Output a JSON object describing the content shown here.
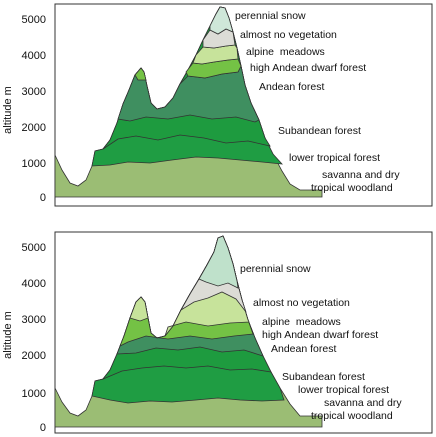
{
  "panels": [
    {
      "id": "top",
      "ylabel": "altitude m",
      "yticks": [
        0,
        1000,
        2000,
        3000,
        4000,
        5000
      ],
      "zones": [
        {
          "key": "snow",
          "label": "perennial snow",
          "color": "#cfe7d9"
        },
        {
          "key": "novg",
          "label": "almost no vegetation",
          "color": "#dcdcd6"
        },
        {
          "key": "alp",
          "label": "alpine  meadows",
          "color": "#c7e39b"
        },
        {
          "key": "dwarf",
          "label": "high Andean dwarf forest",
          "color": "#74c245"
        },
        {
          "key": "andean",
          "label": "Andean forest",
          "color": "#3f8f60"
        },
        {
          "key": "subandean",
          "label": "Subandean forest",
          "color": "#1e9b3f"
        },
        {
          "key": "lower",
          "label": "lower tropical forest",
          "color": "#1f9d43"
        },
        {
          "key": "savanna",
          "label": "savanna and dry tropical woodland",
          "label_lines": [
            "savanna and dry",
            "tropical woodland"
          ],
          "color": "#9bbd74"
        }
      ]
    },
    {
      "id": "bottom",
      "ylabel": "altitude m",
      "yticks": [
        0,
        1000,
        2000,
        3000,
        4000,
        5000
      ],
      "zones": [
        {
          "key": "snow",
          "label": "perennial snow",
          "color": "#bfe1cb"
        },
        {
          "key": "novg",
          "label": "almost no vegetation",
          "color": "#dcdcd6"
        },
        {
          "key": "alp",
          "label": "alpine  meadows",
          "color": "#c7e39b"
        },
        {
          "key": "dwarf",
          "label": "high Andean dwarf forest",
          "color": "#74c245"
        },
        {
          "key": "andean",
          "label": "Andean forest",
          "color": "#3f8f60"
        },
        {
          "key": "subandean",
          "label": "Subandean forest",
          "color": "#1e9b3f"
        },
        {
          "key": "lower",
          "label": "lower tropical forest",
          "color": "#1f9d43"
        },
        {
          "key": "savanna",
          "label": "savanna and dry tropical woodland",
          "label_lines": [
            "savanna and dry",
            "tropical woodland"
          ],
          "color": "#9bbd74"
        }
      ]
    }
  ]
}
